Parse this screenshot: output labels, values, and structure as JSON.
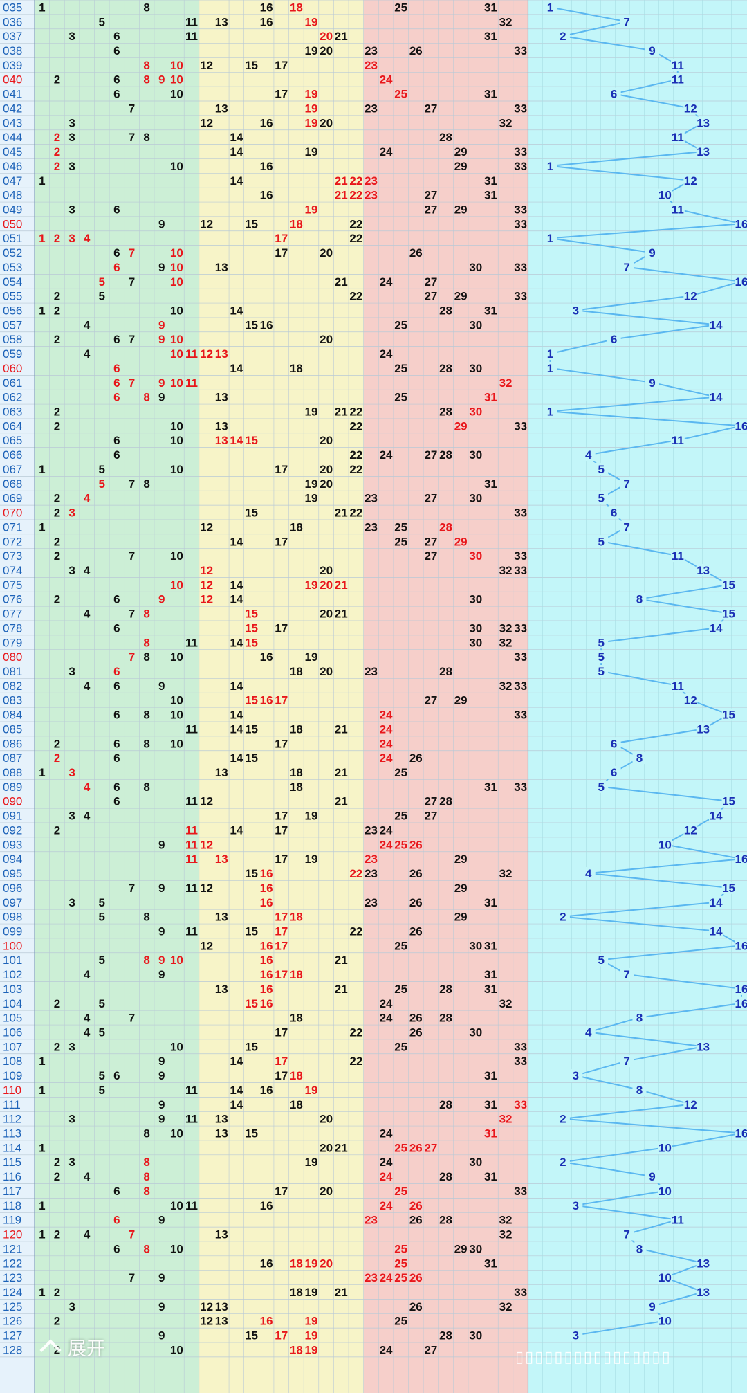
{
  "ui": {
    "expand_label": "展开"
  },
  "colors": {
    "red": "#e8161b",
    "black": "#111111",
    "blue": "#1a2fb5",
    "line": "#5ab7f0",
    "issue_blue": "#1c62b8",
    "issue_red": "#e8161b",
    "zone_green": "#ccefd6",
    "zone_yellow": "#f7f4c8",
    "zone_pink": "#f6cfca",
    "zone_cyan": "#c3f6f9"
  },
  "chart_data": {
    "type": "table",
    "number_columns": [
      "1",
      "2",
      "3",
      "4",
      "5",
      "6",
      "7",
      "8",
      "9",
      "10",
      "11",
      "12",
      "13",
      "14",
      "15",
      "16",
      "17",
      "18",
      "19",
      "20",
      "21",
      "22",
      "23",
      "24",
      "25",
      "26",
      "27",
      "28",
      "29",
      "30",
      "31",
      "32",
      "33"
    ],
    "trend_column_range": [
      1,
      16
    ],
    "red_issue_labels": [
      "040",
      "050",
      "060",
      "070",
      "080",
      "090",
      "100",
      "110",
      "120"
    ],
    "rows": [
      {
        "issue": "035",
        "nums": [
          "1",
          "8",
          "16",
          "r18",
          "25",
          "31"
        ],
        "trend": 1
      },
      {
        "issue": "036",
        "nums": [
          "5",
          "11",
          "13",
          "16",
          "r19",
          "32"
        ],
        "trend": 7
      },
      {
        "issue": "037",
        "nums": [
          "3",
          "6",
          "11",
          "r20",
          "21",
          "31"
        ],
        "trend": 2
      },
      {
        "issue": "038",
        "nums": [
          "6",
          "19",
          "20",
          "23",
          "26",
          "33"
        ],
        "trend": 9
      },
      {
        "issue": "039",
        "nums": [
          "r8",
          "r10",
          "12",
          "15",
          "17",
          "r23"
        ],
        "trend": 11
      },
      {
        "issue": "040",
        "nums": [
          "2",
          "6",
          "r8",
          "r9",
          "r10",
          "r24"
        ],
        "trend": 11
      },
      {
        "issue": "041",
        "nums": [
          "6",
          "10",
          "17",
          "r19",
          "r25",
          "31"
        ],
        "trend": 6
      },
      {
        "issue": "042",
        "nums": [
          "7",
          "13",
          "r19",
          "23",
          "27",
          "33"
        ],
        "trend": 12
      },
      {
        "issue": "043",
        "nums": [
          "3",
          "12",
          "16",
          "r19",
          "20",
          "32"
        ],
        "trend": 13
      },
      {
        "issue": "044",
        "nums": [
          "r2",
          "3",
          "7",
          "8",
          "14",
          "28"
        ],
        "trend": 11
      },
      {
        "issue": "045",
        "nums": [
          "r2",
          "14",
          "19",
          "24",
          "29",
          "33"
        ],
        "trend": 13
      },
      {
        "issue": "046",
        "nums": [
          "r2",
          "3",
          "10",
          "16",
          "29",
          "33"
        ],
        "trend": 1
      },
      {
        "issue": "047",
        "nums": [
          "1",
          "14",
          "r21",
          "r22",
          "r23",
          "31"
        ],
        "trend": 12
      },
      {
        "issue": "048",
        "nums": [
          "16",
          "r21",
          "r22",
          "r23",
          "27",
          "31"
        ],
        "trend": 10
      },
      {
        "issue": "049",
        "nums": [
          "3",
          "6",
          "r19",
          "27",
          "29",
          "33"
        ],
        "trend": 11
      },
      {
        "issue": "050",
        "nums": [
          "9",
          "12",
          "15",
          "r18",
          "22",
          "33"
        ],
        "trend": 16
      },
      {
        "issue": "051",
        "nums": [
          "r1",
          "r2",
          "r3",
          "r4",
          "r17",
          "22"
        ],
        "trend": 1
      },
      {
        "issue": "052",
        "nums": [
          "6",
          "r7",
          "r10",
          "17",
          "20",
          "26"
        ],
        "trend": 9
      },
      {
        "issue": "053",
        "nums": [
          "r6",
          "9",
          "r10",
          "13",
          "30",
          "33"
        ],
        "trend": 7
      },
      {
        "issue": "054",
        "nums": [
          "r5",
          "7",
          "r10",
          "21",
          "24",
          "27"
        ],
        "trend": 16
      },
      {
        "issue": "055",
        "nums": [
          "2",
          "5",
          "22",
          "27",
          "29",
          "33"
        ],
        "trend": 12
      },
      {
        "issue": "056",
        "nums": [
          "1",
          "2",
          "10",
          "14",
          "28",
          "31"
        ],
        "trend": 3
      },
      {
        "issue": "057",
        "nums": [
          "4",
          "r9",
          "15",
          "16",
          "25",
          "30"
        ],
        "trend": 14
      },
      {
        "issue": "058",
        "nums": [
          "2",
          "6",
          "7",
          "r9",
          "r10",
          "20"
        ],
        "trend": 6
      },
      {
        "issue": "059",
        "nums": [
          "4",
          "r10",
          "r11",
          "r12",
          "r13",
          "24"
        ],
        "trend": 1
      },
      {
        "issue": "060",
        "nums": [
          "r6",
          "14",
          "18",
          "25",
          "28",
          "30"
        ],
        "trend": 1
      },
      {
        "issue": "061",
        "nums": [
          "r6",
          "r7",
          "r9",
          "r10",
          "r11",
          "r32"
        ],
        "trend": 9
      },
      {
        "issue": "062",
        "nums": [
          "r6",
          "r8",
          "9",
          "13",
          "25",
          "r31"
        ],
        "trend": 14
      },
      {
        "issue": "063",
        "nums": [
          "2",
          "19",
          "21",
          "22",
          "28",
          "r30"
        ],
        "trend": 1
      },
      {
        "issue": "064",
        "nums": [
          "2",
          "10",
          "13",
          "22",
          "r29",
          "33"
        ],
        "trend": 16
      },
      {
        "issue": "065",
        "nums": [
          "6",
          "10",
          "r13",
          "r14",
          "r15",
          "20"
        ],
        "trend": 11
      },
      {
        "issue": "066",
        "nums": [
          "6",
          "22",
          "24",
          "27",
          "28",
          "30"
        ],
        "trend": 4
      },
      {
        "issue": "067",
        "nums": [
          "1",
          "5",
          "10",
          "17",
          "20",
          "22"
        ],
        "trend": 5
      },
      {
        "issue": "068",
        "nums": [
          "r5",
          "7",
          "8",
          "19",
          "20",
          "31"
        ],
        "trend": 7
      },
      {
        "issue": "069",
        "nums": [
          "2",
          "r4",
          "19",
          "23",
          "27",
          "30"
        ],
        "trend": 5
      },
      {
        "issue": "070",
        "nums": [
          "2",
          "r3",
          "15",
          "21",
          "22",
          "33"
        ],
        "trend": 6
      },
      {
        "issue": "071",
        "nums": [
          "1",
          "12",
          "18",
          "23",
          "25",
          "r28"
        ],
        "trend": 7
      },
      {
        "issue": "072",
        "nums": [
          "2",
          "14",
          "17",
          "25",
          "27",
          "r29"
        ],
        "trend": 5
      },
      {
        "issue": "073",
        "nums": [
          "2",
          "7",
          "10",
          "27",
          "r30",
          "33"
        ],
        "trend": 11
      },
      {
        "issue": "074",
        "nums": [
          "3",
          "4",
          "r12",
          "20",
          "32",
          "33"
        ],
        "trend": 13
      },
      {
        "issue": "075",
        "nums": [
          "r10",
          "r12",
          "14",
          "r19",
          "r20",
          "r21"
        ],
        "trend": 15
      },
      {
        "issue": "076",
        "nums": [
          "2",
          "6",
          "r9",
          "r12",
          "14",
          "30"
        ],
        "trend": 8
      },
      {
        "issue": "077",
        "nums": [
          "4",
          "7",
          "r8",
          "r15",
          "20",
          "21"
        ],
        "trend": 15
      },
      {
        "issue": "078",
        "nums": [
          "6",
          "r15",
          "17",
          "30",
          "32",
          "33"
        ],
        "trend": 14
      },
      {
        "issue": "079",
        "nums": [
          "r8",
          "11",
          "14",
          "r15",
          "30",
          "32"
        ],
        "trend": 5
      },
      {
        "issue": "080",
        "nums": [
          "r7",
          "8",
          "10",
          "16",
          "19",
          "33"
        ],
        "trend": 5
      },
      {
        "issue": "081",
        "nums": [
          "3",
          "r6",
          "18",
          "20",
          "23",
          "28"
        ],
        "trend": 5
      },
      {
        "issue": "082",
        "nums": [
          "4",
          "6",
          "9",
          "14",
          "32",
          "33"
        ],
        "trend": 11
      },
      {
        "issue": "083",
        "nums": [
          "10",
          "r15",
          "r16",
          "r17",
          "27",
          "29"
        ],
        "trend": 12
      },
      {
        "issue": "084",
        "nums": [
          "6",
          "8",
          "10",
          "14",
          "r24",
          "33"
        ],
        "trend": 15
      },
      {
        "issue": "085",
        "nums": [
          "11",
          "14",
          "15",
          "18",
          "21",
          "r24"
        ],
        "trend": 13
      },
      {
        "issue": "086",
        "nums": [
          "2",
          "6",
          "8",
          "10",
          "17",
          "r24"
        ],
        "trend": 6
      },
      {
        "issue": "087",
        "nums": [
          "r2",
          "6",
          "14",
          "15",
          "r24",
          "26"
        ],
        "trend": 8
      },
      {
        "issue": "088",
        "nums": [
          "1",
          "r3",
          "13",
          "18",
          "21",
          "25"
        ],
        "trend": 6
      },
      {
        "issue": "089",
        "nums": [
          "r4",
          "6",
          "8",
          "18",
          "31",
          "33"
        ],
        "trend": 5
      },
      {
        "issue": "090",
        "nums": [
          "6",
          "11",
          "12",
          "21",
          "27",
          "28"
        ],
        "trend": 15
      },
      {
        "issue": "091",
        "nums": [
          "3",
          "4",
          "17",
          "19",
          "25",
          "27"
        ],
        "trend": 14
      },
      {
        "issue": "092",
        "nums": [
          "2",
          "r11",
          "14",
          "17",
          "23",
          "24"
        ],
        "trend": 12
      },
      {
        "issue": "093",
        "nums": [
          "9",
          "r11",
          "r12",
          "r24",
          "r25",
          "r26"
        ],
        "trend": 10
      },
      {
        "issue": "094",
        "nums": [
          "r11",
          "r13",
          "17",
          "19",
          "r23",
          "29"
        ],
        "trend": 16
      },
      {
        "issue": "095",
        "nums": [
          "15",
          "r16",
          "r22",
          "23",
          "26",
          "32"
        ],
        "trend": 4
      },
      {
        "issue": "096",
        "nums": [
          "7",
          "9",
          "11",
          "12",
          "r16",
          "29"
        ],
        "trend": 15
      },
      {
        "issue": "097",
        "nums": [
          "3",
          "5",
          "r16",
          "23",
          "26",
          "31"
        ],
        "trend": 14
      },
      {
        "issue": "098",
        "nums": [
          "5",
          "8",
          "13",
          "r17",
          "r18",
          "29"
        ],
        "trend": 2
      },
      {
        "issue": "099",
        "nums": [
          "9",
          "11",
          "15",
          "r17",
          "22",
          "26"
        ],
        "trend": 14
      },
      {
        "issue": "100",
        "nums": [
          "12",
          "r16",
          "r17",
          "25",
          "30",
          "31"
        ],
        "trend": 16
      },
      {
        "issue": "101",
        "nums": [
          "5",
          "r8",
          "r9",
          "r10",
          "r16",
          "21"
        ],
        "trend": 5
      },
      {
        "issue": "102",
        "nums": [
          "4",
          "9",
          "r16",
          "r17",
          "r18",
          "31"
        ],
        "trend": 7
      },
      {
        "issue": "103",
        "nums": [
          "13",
          "r16",
          "21",
          "25",
          "28",
          "31"
        ],
        "trend": 16
      },
      {
        "issue": "104",
        "nums": [
          "2",
          "5",
          "r15",
          "r16",
          "24",
          "32"
        ],
        "trend": 16
      },
      {
        "issue": "105",
        "nums": [
          "4",
          "7",
          "18",
          "24",
          "26",
          "28"
        ],
        "trend": 8
      },
      {
        "issue": "106",
        "nums": [
          "4",
          "5",
          "17",
          "22",
          "26",
          "30"
        ],
        "trend": 4
      },
      {
        "issue": "107",
        "nums": [
          "2",
          "3",
          "10",
          "15",
          "25",
          "33"
        ],
        "trend": 13
      },
      {
        "issue": "108",
        "nums": [
          "1",
          "9",
          "14",
          "r17",
          "22",
          "33"
        ],
        "trend": 7
      },
      {
        "issue": "109",
        "nums": [
          "5",
          "6",
          "9",
          "17",
          "r18",
          "31"
        ],
        "trend": 3
      },
      {
        "issue": "110",
        "nums": [
          "1",
          "5",
          "11",
          "14",
          "16",
          "r19"
        ],
        "trend": 8
      },
      {
        "issue": "111",
        "nums": [
          "9",
          "14",
          "18",
          "28",
          "31",
          "r33"
        ],
        "trend": 12
      },
      {
        "issue": "112",
        "nums": [
          "3",
          "9",
          "11",
          "13",
          "20",
          "r32"
        ],
        "trend": 2
      },
      {
        "issue": "113",
        "nums": [
          "8",
          "10",
          "13",
          "15",
          "24",
          "r31"
        ],
        "trend": 16
      },
      {
        "issue": "114",
        "nums": [
          "1",
          "20",
          "21",
          "r25",
          "r26",
          "r27"
        ],
        "trend": 10
      },
      {
        "issue": "115",
        "nums": [
          "2",
          "3",
          "r8",
          "19",
          "24",
          "30"
        ],
        "trend": 2
      },
      {
        "issue": "116",
        "nums": [
          "2",
          "4",
          "r8",
          "r24",
          "28",
          "31"
        ],
        "trend": 9
      },
      {
        "issue": "117",
        "nums": [
          "6",
          "r8",
          "17",
          "20",
          "r25",
          "33"
        ],
        "trend": 10
      },
      {
        "issue": "118",
        "nums": [
          "1",
          "10",
          "11",
          "16",
          "r24",
          "r26"
        ],
        "trend": 3
      },
      {
        "issue": "119",
        "nums": [
          "r6",
          "9",
          "r23",
          "26",
          "28",
          "32"
        ],
        "trend": 11
      },
      {
        "issue": "120",
        "nums": [
          "1",
          "2",
          "4",
          "r7",
          "13",
          "32"
        ],
        "trend": 7
      },
      {
        "issue": "121",
        "nums": [
          "6",
          "r8",
          "10",
          "r25",
          "29",
          "30"
        ],
        "trend": 8
      },
      {
        "issue": "122",
        "nums": [
          "16",
          "r18",
          "r19",
          "r20",
          "r25",
          "31"
        ],
        "trend": 13
      },
      {
        "issue": "123",
        "nums": [
          "7",
          "9",
          "r23",
          "r24",
          "r25",
          "r26"
        ],
        "trend": 10
      },
      {
        "issue": "124",
        "nums": [
          "1",
          "2",
          "18",
          "19",
          "21",
          "33"
        ],
        "trend": 13
      },
      {
        "issue": "125",
        "nums": [
          "3",
          "9",
          "12",
          "13",
          "26",
          "32"
        ],
        "trend": 9
      },
      {
        "issue": "126",
        "nums": [
          "2",
          "12",
          "13",
          "r16",
          "r19",
          "25"
        ],
        "trend": 10
      },
      {
        "issue": "127",
        "nums": [
          "9",
          "15",
          "r17",
          "r19",
          "28",
          "30"
        ],
        "trend": 3
      },
      {
        "issue": "128",
        "nums": [
          "2",
          "10",
          "r18",
          "r19",
          "24",
          "27"
        ],
        "trend": null
      }
    ]
  }
}
